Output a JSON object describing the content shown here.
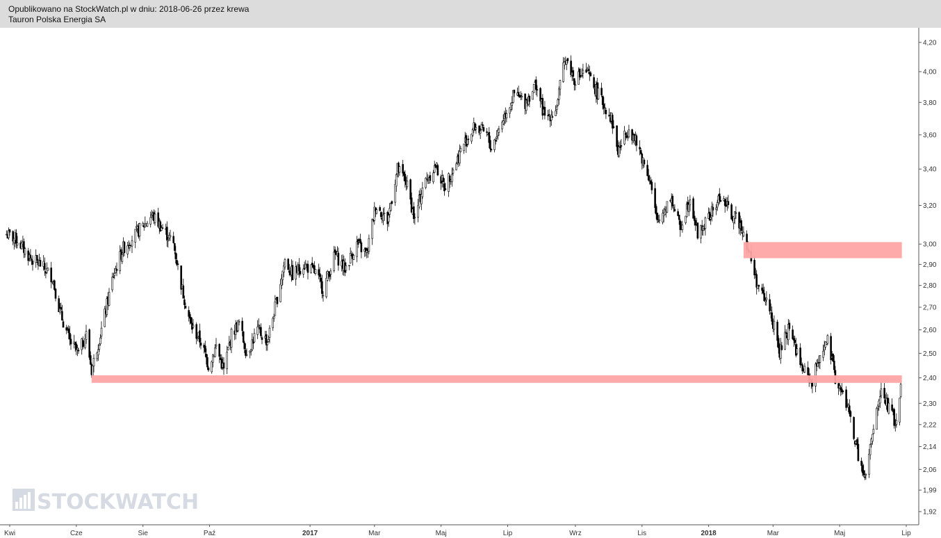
{
  "header": {
    "published": "Opublikowano na StockWatch.pl w dniu: 2018-06-26 przez krewa",
    "instrument": "Tauron Polska Energia SA"
  },
  "watermark": {
    "text": "STOCKWATCH",
    "icon": "bar-chart-icon"
  },
  "chart_data": {
    "type": "candlestick",
    "title": "Tauron Polska Energia SA",
    "x_ticks": [
      "Kwi",
      "Cze",
      "Sie",
      "Paź",
      "2017",
      "Mar",
      "Maj",
      "Lip",
      "Wrz",
      "Lis",
      "2018",
      "Mar",
      "Maj",
      "Lip"
    ],
    "x_ticks_bold": [
      "2017",
      "2018"
    ],
    "y_ticks": [
      "4,20",
      "4,00",
      "3,80",
      "3,60",
      "3,40",
      "3,20",
      "3,00",
      "2,90",
      "2,80",
      "2,70",
      "2,60",
      "2,50",
      "2,40",
      "2,30",
      "2,22",
      "2,14",
      "2,06",
      "1,99",
      "1,92"
    ],
    "y_tick_values": [
      4.2,
      4.0,
      3.8,
      3.6,
      3.4,
      3.2,
      3.0,
      2.9,
      2.8,
      2.7,
      2.6,
      2.5,
      2.4,
      2.3,
      2.22,
      2.14,
      2.06,
      1.99,
      1.92
    ],
    "y_scale": "log",
    "ylim": [
      1.9,
      4.25
    ],
    "x_range": [
      "2016-04",
      "2018-07"
    ],
    "colors": {
      "candle": "#000000",
      "zone": "#ffa5a5",
      "header": "#dcdcdc"
    },
    "close_path": [
      [
        "2016-03-29",
        3.05
      ],
      [
        "2016-04-08",
        3.02
      ],
      [
        "2016-04-20",
        2.93
      ],
      [
        "2016-04-29",
        2.9
      ],
      [
        "2016-05-10",
        2.84
      ],
      [
        "2016-05-17",
        2.68
      ],
      [
        "2016-05-26",
        2.55
      ],
      [
        "2016-06-03",
        2.5
      ],
      [
        "2016-06-10",
        2.58
      ],
      [
        "2016-06-15",
        2.43
      ],
      [
        "2016-06-24",
        2.6
      ],
      [
        "2016-07-05",
        2.85
      ],
      [
        "2016-07-14",
        2.98
      ],
      [
        "2016-07-25",
        3.05
      ],
      [
        "2016-08-04",
        3.11
      ],
      [
        "2016-08-09",
        3.15
      ],
      [
        "2016-08-19",
        3.08
      ],
      [
        "2016-08-29",
        3.0
      ],
      [
        "2016-09-06",
        2.78
      ],
      [
        "2016-09-14",
        2.62
      ],
      [
        "2016-09-23",
        2.55
      ],
      [
        "2016-09-30",
        2.45
      ],
      [
        "2016-10-07",
        2.53
      ],
      [
        "2016-10-14",
        2.43
      ],
      [
        "2016-10-21",
        2.58
      ],
      [
        "2016-10-28",
        2.63
      ],
      [
        "2016-11-04",
        2.5
      ],
      [
        "2016-11-14",
        2.6
      ],
      [
        "2016-11-23",
        2.55
      ],
      [
        "2016-12-01",
        2.72
      ],
      [
        "2016-12-09",
        2.92
      ],
      [
        "2016-12-16",
        2.85
      ],
      [
        "2016-12-26",
        2.9
      ],
      [
        "2017-01-06",
        2.86
      ],
      [
        "2017-01-13",
        2.78
      ],
      [
        "2017-01-24",
        2.95
      ],
      [
        "2017-02-02",
        2.88
      ],
      [
        "2017-02-13",
        3.0
      ],
      [
        "2017-02-22",
        2.95
      ],
      [
        "2017-03-02",
        3.2
      ],
      [
        "2017-03-13",
        3.12
      ],
      [
        "2017-03-22",
        3.4
      ],
      [
        "2017-03-30",
        3.33
      ],
      [
        "2017-04-07",
        3.12
      ],
      [
        "2017-04-14",
        3.3
      ],
      [
        "2017-04-26",
        3.42
      ],
      [
        "2017-05-04",
        3.3
      ],
      [
        "2017-05-12",
        3.4
      ],
      [
        "2017-05-22",
        3.55
      ],
      [
        "2017-06-01",
        3.65
      ],
      [
        "2017-06-12",
        3.6
      ],
      [
        "2017-06-16",
        3.52
      ],
      [
        "2017-06-28",
        3.72
      ],
      [
        "2017-07-07",
        3.85
      ],
      [
        "2017-07-17",
        3.8
      ],
      [
        "2017-07-27",
        3.92
      ],
      [
        "2017-08-04",
        3.7
      ],
      [
        "2017-08-14",
        3.75
      ],
      [
        "2017-08-23",
        4.1
      ],
      [
        "2017-08-31",
        3.95
      ],
      [
        "2017-09-11",
        4.0
      ],
      [
        "2017-09-22",
        3.85
      ],
      [
        "2017-10-04",
        3.7
      ],
      [
        "2017-10-10",
        3.5
      ],
      [
        "2017-10-20",
        3.65
      ],
      [
        "2017-10-30",
        3.5
      ],
      [
        "2017-11-08",
        3.35
      ],
      [
        "2017-11-15",
        3.1
      ],
      [
        "2017-11-27",
        3.25
      ],
      [
        "2017-12-06",
        3.08
      ],
      [
        "2017-12-15",
        3.25
      ],
      [
        "2017-12-22",
        3.05
      ],
      [
        "2018-01-03",
        3.15
      ],
      [
        "2018-01-12",
        3.25
      ],
      [
        "2018-01-22",
        3.15
      ],
      [
        "2018-01-31",
        3.1
      ],
      [
        "2018-02-09",
        2.92
      ],
      [
        "2018-02-16",
        2.78
      ],
      [
        "2018-02-26",
        2.7
      ],
      [
        "2018-03-07",
        2.5
      ],
      [
        "2018-03-16",
        2.62
      ],
      [
        "2018-03-26",
        2.45
      ],
      [
        "2018-04-06",
        2.38
      ],
      [
        "2018-04-13",
        2.5
      ],
      [
        "2018-04-20",
        2.55
      ],
      [
        "2018-04-27",
        2.4
      ],
      [
        "2018-05-09",
        2.28
      ],
      [
        "2018-05-16",
        2.14
      ],
      [
        "2018-05-24",
        2.02
      ],
      [
        "2018-06-01",
        2.2
      ],
      [
        "2018-06-08",
        2.35
      ],
      [
        "2018-06-15",
        2.28
      ],
      [
        "2018-06-22",
        2.22
      ],
      [
        "2018-06-26",
        2.36
      ]
    ],
    "zones": [
      {
        "from": "2016-06-15",
        "to": "2018-06-27",
        "low": 2.38,
        "high": 2.41
      },
      {
        "from": "2018-02-02",
        "to": "2018-06-27",
        "low": 2.93,
        "high": 3.01
      }
    ]
  }
}
